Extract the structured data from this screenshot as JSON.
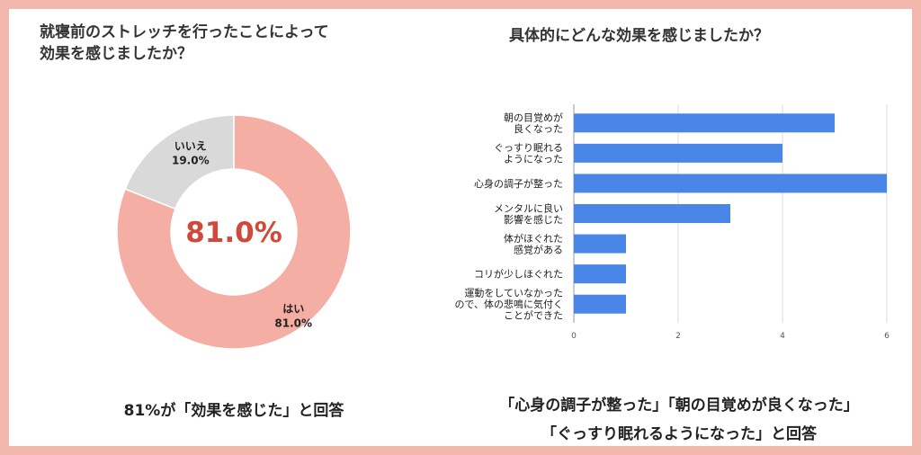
{
  "left_chart": {
    "title": "就寝前のストレッチを行ったことによって\n効果を感じましたか？",
    "center_label": "81.0%",
    "colors": {
      "yes": "#f4aea3",
      "no": "#d9d9d9",
      "center_text": "#d0493a"
    }
  },
  "right_chart": {
    "title": "具体的にどんな効果を感じましたか？",
    "bar_color": "#4a86e8"
  },
  "captions": {
    "left": "81%が「効果を感じた」と回答",
    "right_line1": "「心身の調子が整った」「朝の目覚めが良くなった」",
    "right_line2": "「ぐっすり眠れるようになった」と回答"
  },
  "chart_data": [
    {
      "type": "pie",
      "variant": "donut",
      "slices": [
        {
          "label": "はい",
          "value": 81.0,
          "display": "81.0%"
        },
        {
          "label": "いいえ",
          "value": 19.0,
          "display": "19.0%"
        }
      ]
    },
    {
      "type": "bar",
      "orientation": "horizontal",
      "categories": [
        "朝の目覚めが\n良くなった",
        "ぐっすり眠れる\nようになった",
        "心身の調子が整った",
        "メンタルに良い\n影響を感じた",
        "体がほぐれた\n感覚がある",
        "コリが少しほぐれた",
        "運動をしていなかった\nので、体の悲鳴に気付く\nことができた"
      ],
      "values": [
        5,
        4,
        6,
        3,
        1,
        1,
        1
      ],
      "xlim": [
        0,
        6
      ],
      "xticks": [
        "0",
        "2",
        "4",
        "6"
      ],
      "grid": true
    }
  ]
}
